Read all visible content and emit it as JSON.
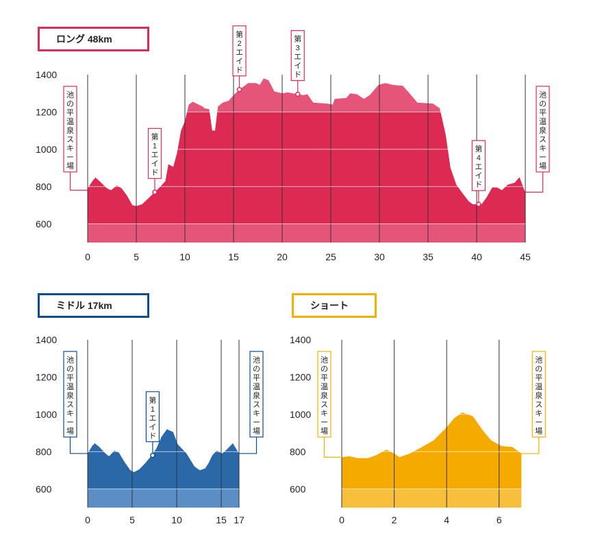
{
  "titles": {
    "long": "ロング 48km",
    "middle": "ミドル 17km",
    "short": "ショート"
  },
  "colors": {
    "long_dark": "#dc2a53",
    "long_light": "#e5557a",
    "long_border": "#db2b57",
    "middle_dark": "#2b68a8",
    "middle_light": "#5b8ec4",
    "middle_border": "#0f4c8f",
    "short_dark": "#f5aa00",
    "short_light": "#f8bf3c",
    "short_border": "#f2b000",
    "grid": "#333333"
  },
  "chart_data": [
    {
      "type": "area",
      "id": "long",
      "title": "ロング 48km",
      "xlabel": "",
      "ylabel": "",
      "xlim": [
        0,
        45
      ],
      "ylim": [
        500,
        1400
      ],
      "x_ticks": [
        0,
        5,
        10,
        15,
        20,
        25,
        30,
        35,
        40,
        45
      ],
      "y_ticks": [
        600,
        800,
        1000,
        1200,
        1400
      ],
      "darker_band_y": [
        600,
        1200
      ],
      "grid": "vertical",
      "profile": [
        [
          0,
          790
        ],
        [
          0.5,
          830
        ],
        [
          0.8,
          848
        ],
        [
          1.2,
          830
        ],
        [
          2,
          790
        ],
        [
          2.4,
          780
        ],
        [
          3,
          805
        ],
        [
          3.5,
          790
        ],
        [
          4,
          755
        ],
        [
          4.6,
          700
        ],
        [
          5,
          695
        ],
        [
          5.6,
          705
        ],
        [
          6.3,
          740
        ],
        [
          6.9,
          770
        ],
        [
          7.5,
          800
        ],
        [
          8,
          830
        ],
        [
          8.3,
          920
        ],
        [
          8.8,
          905
        ],
        [
          9.2,
          980
        ],
        [
          9.6,
          1100
        ],
        [
          10,
          1150
        ],
        [
          10.4,
          1240
        ],
        [
          10.8,
          1255
        ],
        [
          11.4,
          1240
        ],
        [
          11.8,
          1230
        ],
        [
          12,
          1220
        ],
        [
          12.5,
          1215
        ],
        [
          12.8,
          1100
        ],
        [
          13.1,
          1100
        ],
        [
          13.4,
          1230
        ],
        [
          13.9,
          1250
        ],
        [
          14.5,
          1260
        ],
        [
          15,
          1290
        ],
        [
          15.6,
          1320
        ],
        [
          16.5,
          1355
        ],
        [
          17.3,
          1355
        ],
        [
          17.7,
          1345
        ],
        [
          18.1,
          1380
        ],
        [
          18.6,
          1370
        ],
        [
          19.2,
          1310
        ],
        [
          20,
          1300
        ],
        [
          20.6,
          1305
        ],
        [
          21.6,
          1295
        ],
        [
          22.2,
          1290
        ],
        [
          22.6,
          1295
        ],
        [
          23.2,
          1250
        ],
        [
          24.6,
          1245
        ],
        [
          25.2,
          1240
        ],
        [
          25.4,
          1270
        ],
        [
          26.6,
          1275
        ],
        [
          27,
          1300
        ],
        [
          27.7,
          1295
        ],
        [
          28.4,
          1270
        ],
        [
          29,
          1290
        ],
        [
          29.9,
          1345
        ],
        [
          30.6,
          1355
        ],
        [
          31.4,
          1345
        ],
        [
          32.4,
          1340
        ],
        [
          33.1,
          1300
        ],
        [
          33.9,
          1250
        ],
        [
          35.5,
          1245
        ],
        [
          36.2,
          1220
        ],
        [
          36.8,
          1080
        ],
        [
          37.3,
          900
        ],
        [
          37.9,
          810
        ],
        [
          38.6,
          760
        ],
        [
          39.2,
          720
        ],
        [
          39.6,
          705
        ],
        [
          40.5,
          705
        ],
        [
          41,
          740
        ],
        [
          41.6,
          795
        ],
        [
          42.1,
          795
        ],
        [
          42.6,
          780
        ],
        [
          43.2,
          810
        ],
        [
          43.9,
          820
        ],
        [
          44.4,
          850
        ],
        [
          44.9,
          780
        ],
        [
          45,
          770
        ]
      ],
      "annotations": [
        {
          "text": "池の平温泉スキー場",
          "x": 0,
          "y": 780,
          "shape": "side-box"
        },
        {
          "text": "第1エイド",
          "x": 6.9,
          "y": 770,
          "shape": "callout"
        },
        {
          "text": "第2エイド",
          "x": 15.6,
          "y": 1320,
          "shape": "callout"
        },
        {
          "text": "第3エイド",
          "x": 21.6,
          "y": 1295,
          "shape": "callout"
        },
        {
          "text": "第4エイド",
          "x": 40.2,
          "y": 705,
          "shape": "callout"
        },
        {
          "text": "池の平温泉スキー場",
          "x": 45,
          "y": 770,
          "shape": "side-box"
        }
      ]
    },
    {
      "type": "area",
      "id": "middle",
      "title": "ミドル 17km",
      "xlabel": "",
      "ylabel": "",
      "xlim": [
        0,
        17
      ],
      "ylim": [
        500,
        1400
      ],
      "x_ticks": [
        0,
        5,
        10,
        15,
        17
      ],
      "y_ticks": [
        600,
        800,
        1000,
        1200,
        1400
      ],
      "darker_band_y": [
        600,
        1200
      ],
      "grid": "vertical",
      "profile": [
        [
          0,
          790
        ],
        [
          0.5,
          830
        ],
        [
          0.8,
          845
        ],
        [
          1.3,
          825
        ],
        [
          2,
          790
        ],
        [
          2.4,
          775
        ],
        [
          3,
          805
        ],
        [
          3.5,
          795
        ],
        [
          4.2,
          740
        ],
        [
          4.8,
          700
        ],
        [
          5.2,
          690
        ],
        [
          5.8,
          705
        ],
        [
          6.5,
          740
        ],
        [
          7.2,
          780
        ],
        [
          7.7,
          815
        ],
        [
          8.3,
          880
        ],
        [
          8.9,
          920
        ],
        [
          9.6,
          905
        ],
        [
          10.1,
          840
        ],
        [
          10.5,
          820
        ],
        [
          11.1,
          790
        ],
        [
          12,
          720
        ],
        [
          12.6,
          700
        ],
        [
          13.2,
          710
        ],
        [
          13.6,
          740
        ],
        [
          14,
          780
        ],
        [
          14.5,
          805
        ],
        [
          15.1,
          790
        ],
        [
          15.6,
          810
        ],
        [
          16.3,
          845
        ],
        [
          16.8,
          805
        ],
        [
          17,
          790
        ]
      ],
      "annotations": [
        {
          "text": "池の平温泉スキー場",
          "x": 0,
          "y": 790,
          "shape": "side-box"
        },
        {
          "text": "第1エイド",
          "x": 7.3,
          "y": 780,
          "shape": "callout"
        },
        {
          "text": "池の平温泉スキー場",
          "x": 17,
          "y": 790,
          "shape": "side-box"
        }
      ]
    },
    {
      "type": "area",
      "id": "short",
      "title": "ショート",
      "xlabel": "",
      "ylabel": "",
      "xlim": [
        0,
        7
      ],
      "ylim": [
        500,
        1400
      ],
      "x_ticks": [
        0,
        2,
        4,
        6
      ],
      "y_ticks": [
        600,
        800,
        1000,
        1200,
        1400
      ],
      "darker_band_y": [
        600,
        1200
      ],
      "grid": "vertical",
      "profile": [
        [
          0,
          770
        ],
        [
          0.3,
          775
        ],
        [
          0.6,
          765
        ],
        [
          1,
          765
        ],
        [
          1.3,
          780
        ],
        [
          1.7,
          810
        ],
        [
          2,
          790
        ],
        [
          2.2,
          770
        ],
        [
          2.6,
          790
        ],
        [
          3,
          820
        ],
        [
          3.5,
          860
        ],
        [
          4,
          930
        ],
        [
          4.3,
          980
        ],
        [
          4.6,
          1010
        ],
        [
          5.0,
          990
        ],
        [
          5.4,
          910
        ],
        [
          5.7,
          860
        ],
        [
          6.1,
          830
        ],
        [
          6.5,
          825
        ],
        [
          6.8,
          795
        ],
        [
          6.85,
          790
        ]
      ],
      "annotations": [
        {
          "text": "池の平温泉スキー場",
          "x": 0,
          "y": 770,
          "shape": "side-box"
        },
        {
          "text": "池の平温泉スキー場",
          "x": 6.85,
          "y": 790,
          "shape": "side-box"
        }
      ]
    }
  ]
}
